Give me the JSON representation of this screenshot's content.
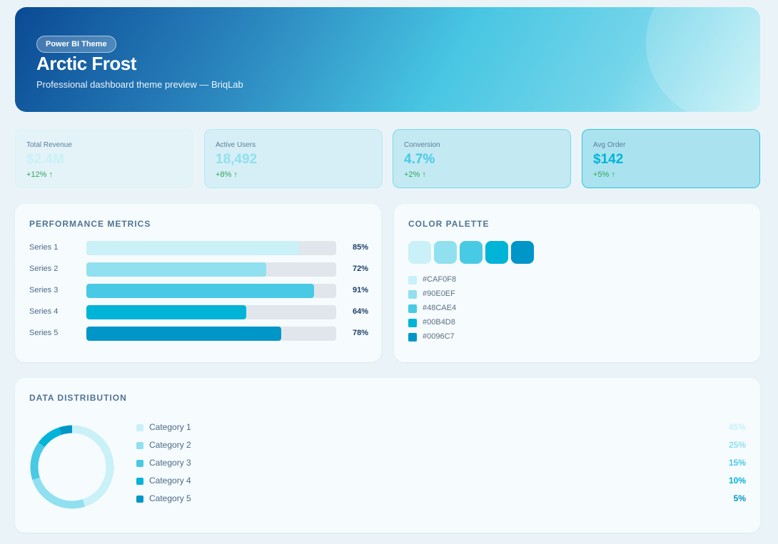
{
  "header": {
    "badge": "Power BI Theme",
    "title": "Arctic Frost",
    "subtitle": "Professional dashboard theme preview — BriqLab"
  },
  "kpis": [
    {
      "label": "Total Revenue",
      "value": "$2.4M",
      "delta": "+12% ↑",
      "color": "#CAF0F8"
    },
    {
      "label": "Active Users",
      "value": "18,492",
      "delta": "+8% ↑",
      "color": "#90E0EF"
    },
    {
      "label": "Conversion",
      "value": "4.7%",
      "delta": "+2% ↑",
      "color": "#48CAE4"
    },
    {
      "label": "Avg Order",
      "value": "$142",
      "delta": "+5% ↑",
      "color": "#00B4D8"
    }
  ],
  "performance": {
    "title": "PERFORMANCE METRICS",
    "series": [
      {
        "label": "Series 1",
        "value": 85,
        "display": "85%",
        "color": "#CAF0F8"
      },
      {
        "label": "Series 2",
        "value": 72,
        "display": "72%",
        "color": "#90E0EF"
      },
      {
        "label": "Series 3",
        "value": 91,
        "display": "91%",
        "color": "#48CAE4"
      },
      {
        "label": "Series 4",
        "value": 64,
        "display": "64%",
        "color": "#00B4D8"
      },
      {
        "label": "Series 5",
        "value": 78,
        "display": "78%",
        "color": "#0096C7"
      }
    ]
  },
  "palette": {
    "title": "COLOR PALETTE",
    "colors": [
      "#CAF0F8",
      "#90E0EF",
      "#48CAE4",
      "#00B4D8",
      "#0096C7"
    ]
  },
  "distribution": {
    "title": "DATA DISTRIBUTION",
    "categories": [
      {
        "label": "Category 1",
        "value": 45,
        "display": "45%",
        "color": "#CAF0F8"
      },
      {
        "label": "Category 2",
        "value": 25,
        "display": "25%",
        "color": "#90E0EF"
      },
      {
        "label": "Category 3",
        "value": 15,
        "display": "15%",
        "color": "#48CAE4"
      },
      {
        "label": "Category 4",
        "value": 10,
        "display": "10%",
        "color": "#00B4D8"
      },
      {
        "label": "Category 5",
        "value": 5,
        "display": "5%",
        "color": "#0096C7"
      }
    ]
  }
}
